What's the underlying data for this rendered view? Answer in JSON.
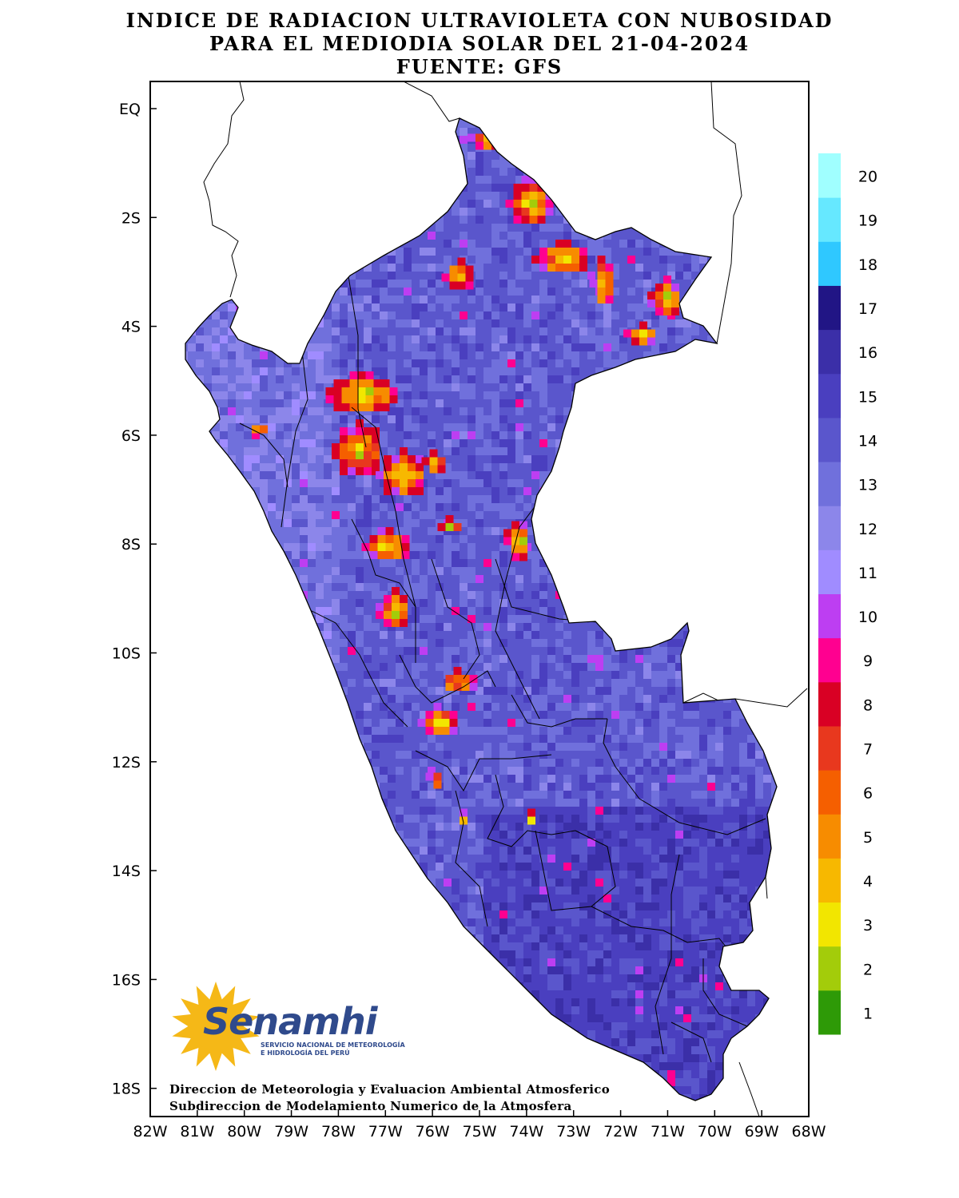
{
  "title": {
    "line1": "INDICE DE RADIACION ULTRAVIOLETA CON NUBOSIDAD",
    "line2": "PARA EL MEDIODIA SOLAR DEL 21-04-2024",
    "line3": "FUENTE: GFS"
  },
  "axes": {
    "lon_labels": [
      "82W",
      "81W",
      "80W",
      "79W",
      "78W",
      "77W",
      "76W",
      "75W",
      "74W",
      "73W",
      "72W",
      "71W",
      "70W",
      "69W",
      "68W"
    ],
    "lat_labels": [
      "EQ",
      "2S",
      "4S",
      "6S",
      "8S",
      "10S",
      "12S",
      "14S",
      "16S",
      "18S"
    ]
  },
  "legend": {
    "values": [
      "1",
      "2",
      "3",
      "4",
      "5",
      "6",
      "7",
      "8",
      "9",
      "10",
      "11",
      "12",
      "13",
      "14",
      "15",
      "16",
      "17",
      "18",
      "19",
      "20"
    ],
    "colors": [
      "#2e9a07",
      "#a3cc0a",
      "#f2e600",
      "#f7b800",
      "#f78c00",
      "#f55f00",
      "#e8381e",
      "#d90024",
      "#ff0090",
      "#bd3ef2",
      "#a08cff",
      "#8c86ea",
      "#7070dc",
      "#5a56cc",
      "#4a3fbf",
      "#3b2fa8",
      "#211585",
      "#2fc8ff",
      "#66e8ff",
      "#a0ffff"
    ]
  },
  "logo": {
    "name": "Senamhi",
    "line1": "SERVICIO NACIONAL DE METEOROLOGÍA",
    "line2": "E HIDROLOGÍA DEL PERÚ"
  },
  "credits": {
    "line1": "Direccion de Meteorologia y Evaluacion Ambiental Atmosferico",
    "line2": "Subdireccion de Modelamiento Numerico de la Atmosfera"
  }
}
